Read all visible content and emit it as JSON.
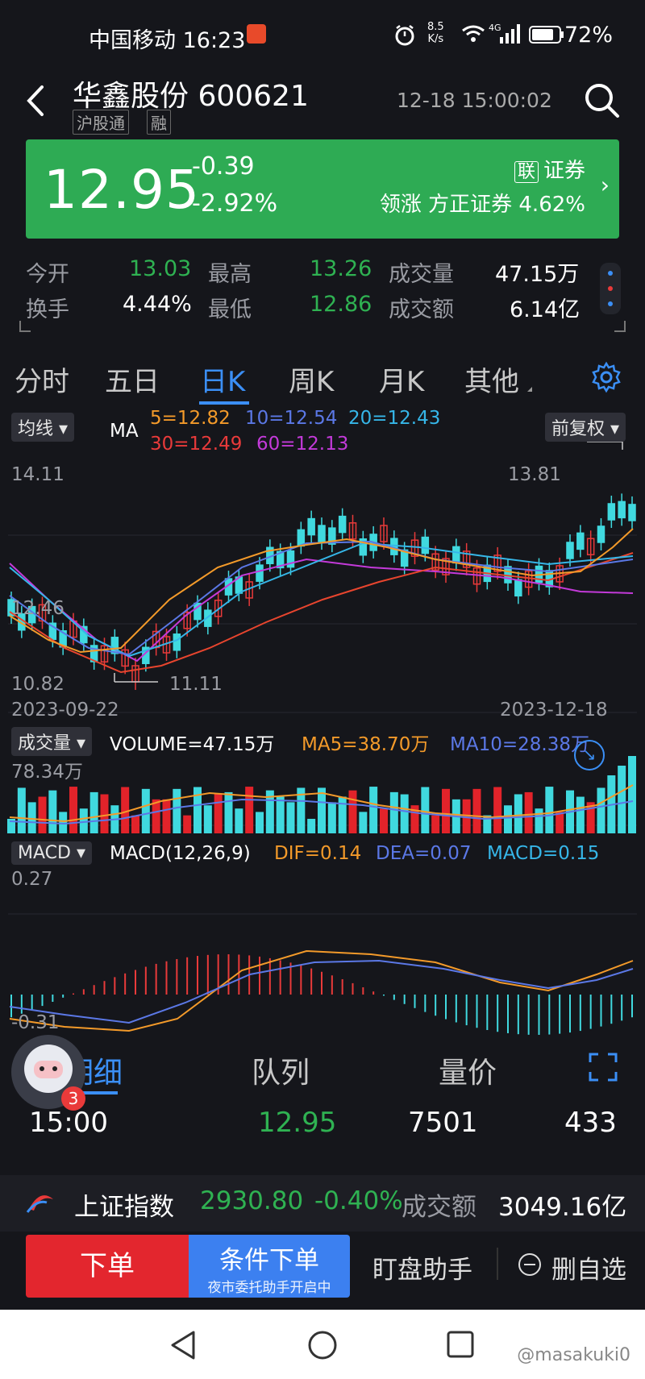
{
  "status_bar": {
    "carrier_time": "中国移动 16:23",
    "net_speed_top": "8.5",
    "net_speed_bottom": "K/s",
    "signal_label": "4G",
    "battery": "72%"
  },
  "header": {
    "title": "华鑫股份 600621",
    "badges": [
      "沪股通",
      "融"
    ],
    "timestamp": "12-18 15:00:02"
  },
  "price_banner": {
    "price": "12.95",
    "change": "-0.39",
    "change_pct": "-2.92%",
    "broker_tag": "联",
    "broker_label": "证券",
    "lead_text": "领涨 方正证券 4.62%",
    "bg_color": "#2eab54"
  },
  "quote": {
    "open_label": "今开",
    "open": "13.03",
    "high_label": "最高",
    "high": "13.26",
    "volume_label": "成交量",
    "volume": "47.15万",
    "turnover_label": "换手",
    "turnover": "4.44%",
    "low_label": "最低",
    "low": "12.86",
    "amount_label": "成交额",
    "amount": "6.14亿"
  },
  "tabs": [
    {
      "label": "分时"
    },
    {
      "label": "五日"
    },
    {
      "label": "日K"
    },
    {
      "label": "周K"
    },
    {
      "label": "月K"
    },
    {
      "label": "其他"
    }
  ],
  "chart": {
    "ma_chip": "均线",
    "ma_label": "MA",
    "ma5": "5=12.82",
    "ma10": "10=12.54",
    "ma20": "20=12.43",
    "ma30": "30=12.49",
    "ma60": "60=12.13",
    "adjust_chip": "前复权",
    "y_top": "14.11",
    "y_mid": "12.46",
    "y_bottom": "10.82",
    "max_label": "13.81",
    "min_label": "11.11",
    "date_start": "2023-09-22",
    "date_end": "2023-12-18",
    "vol_chip": "成交量",
    "volume_text": "VOLUME=47.15万",
    "vol_ma5": "MA5=38.70万",
    "vol_ma10": "MA10=28.38万",
    "vol_top": "78.34万",
    "macd_chip": "MACD",
    "macd_params": "MACD(12,26,9)",
    "dif": "DIF=0.14",
    "dea": "DEA=0.07",
    "macd_val": "MACD=0.15",
    "macd_top": "0.27",
    "macd_bottom": "-0.31"
  },
  "detail_tabs": [
    {
      "label": "明细"
    },
    {
      "label": "队列"
    },
    {
      "label": "量价"
    }
  ],
  "trade_row": {
    "time": "15:00",
    "price": "12.95",
    "volume": "7501",
    "count": "433"
  },
  "avatar_badge": "3",
  "index_bar": {
    "name": "上证指数",
    "value": "2930.80",
    "change_pct": "-0.40%",
    "amount_label": "成交额",
    "amount": "3049.16亿"
  },
  "actions": {
    "order": "下单",
    "cond_order": "条件下单",
    "cond_sub": "夜市委托助手开启中",
    "watch": "盯盘助手",
    "delete_watch": "删自选"
  },
  "watermark": "@masakuki0"
}
